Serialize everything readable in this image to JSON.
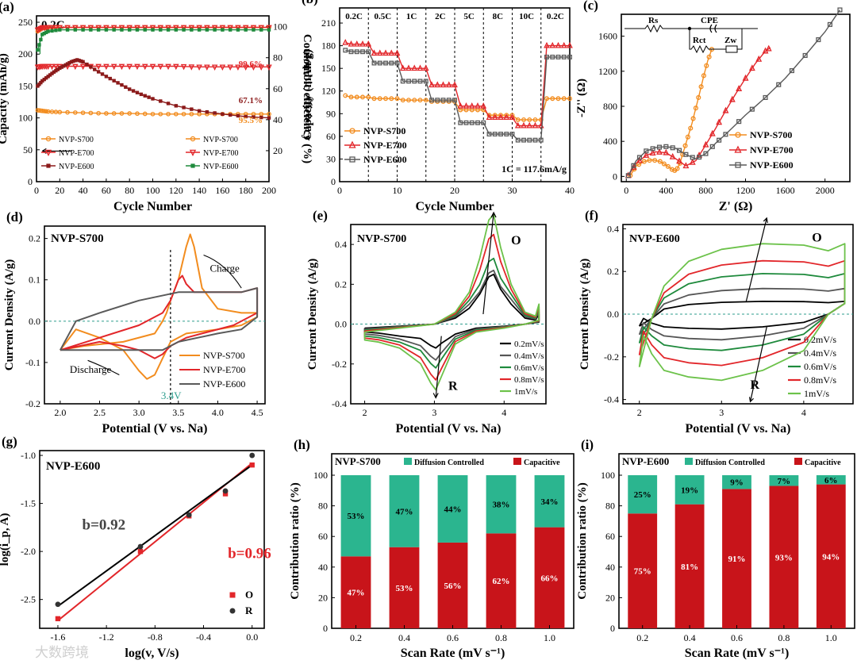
{
  "figure": {
    "watermark": "大数跨境",
    "colors": {
      "orange": "#F28C1E",
      "red": "#E2262A",
      "black": "#222222",
      "gray": "#5A5A5A",
      "green": "#1E8A3C",
      "light_green": "#6CC24A",
      "teal": "#2E9E8E",
      "maroon": "#8B1A1A",
      "diffusion": "#2BB58F",
      "capacitive": "#C8141A"
    }
  },
  "chart_data": [
    {
      "id": "a",
      "panel_label": "(a)",
      "type": "scatter",
      "note": "0.2C",
      "xlabel": "Cycle Number",
      "ylabel": "Capacity (mAh/g)",
      "y2label": "Coulombic efficiency (%)",
      "xlim": [
        0,
        200
      ],
      "ylim": [
        0,
        260
      ],
      "y2lim": [
        0,
        107
      ],
      "xticks": [
        "0",
        "20",
        "40",
        "60",
        "80",
        "100",
        "120",
        "140",
        "160",
        "180",
        "200"
      ],
      "yticks": [
        "0",
        "50",
        "100",
        "150",
        "200",
        "250"
      ],
      "y2ticks": [
        "20",
        "40",
        "60",
        "80",
        "100"
      ],
      "annotations": [
        "99.6%",
        "67.1%",
        "95.5%"
      ],
      "legend_left": [
        "NVP-S700",
        "NVP-E700",
        "NVP-E600"
      ],
      "legend_right": [
        "NVP-S700",
        "NVP-E700",
        "NVP-E600"
      ],
      "series": [
        {
          "name": "NVP-S700",
          "axis": "capacity",
          "x": [
            1,
            5,
            10,
            20,
            40,
            60,
            80,
            100,
            120,
            140,
            160,
            180,
            200
          ],
          "y": [
            112,
            111,
            110,
            109,
            108,
            107,
            107,
            106,
            106,
            106,
            106,
            106,
            106
          ]
        },
        {
          "name": "NVP-E700",
          "axis": "capacity",
          "x": [
            1,
            5,
            10,
            20,
            40,
            60,
            80,
            100,
            120,
            140,
            160,
            180,
            200
          ],
          "y": [
            180,
            181,
            181,
            181,
            181,
            181,
            181,
            181,
            181,
            180,
            180,
            180,
            180
          ]
        },
        {
          "name": "NVP-E600",
          "axis": "capacity",
          "x": [
            1,
            5,
            10,
            15,
            20,
            25,
            30,
            35,
            40,
            50,
            60,
            70,
            80,
            90,
            100,
            120,
            140,
            160,
            180,
            200
          ],
          "y": [
            150,
            158,
            165,
            172,
            178,
            183,
            188,
            191,
            188,
            176,
            165,
            155,
            145,
            137,
            130,
            119,
            111,
            106,
            102,
            100
          ]
        },
        {
          "name": "NVP-S700",
          "axis": "efficiency",
          "x": [
            1,
            5,
            10,
            20,
            40,
            60,
            80,
            100,
            120,
            140,
            160,
            180,
            200
          ],
          "y": [
            97,
            99,
            99.5,
            99.6,
            99.6,
            99.6,
            99.6,
            99.6,
            99.6,
            99.6,
            99.6,
            99.6,
            99.6
          ]
        },
        {
          "name": "NVP-E700",
          "axis": "efficiency",
          "x": [
            1,
            5,
            10,
            20,
            40,
            60,
            80,
            100,
            120,
            140,
            160,
            180,
            200
          ],
          "y": [
            98,
            99.5,
            99.6,
            99.6,
            99.6,
            99.6,
            99.6,
            99.6,
            99.6,
            99.6,
            99.6,
            99.6,
            99.6
          ]
        },
        {
          "name": "NVP-E600",
          "axis": "efficiency",
          "x": [
            1,
            5,
            10,
            20,
            40,
            60,
            80,
            100,
            120,
            140,
            160,
            180,
            200
          ],
          "y": [
            85,
            95,
            97,
            98,
            98,
            98,
            98,
            98,
            98,
            98,
            98,
            98,
            98
          ]
        }
      ]
    },
    {
      "id": "b",
      "panel_label": "(b)",
      "type": "line",
      "xlabel": "Cycle Number",
      "ylabel": "Capacity (mAh/g)",
      "xlim": [
        0,
        40
      ],
      "ylim": [
        0,
        230
      ],
      "xticks": [
        "0",
        "10",
        "20",
        "30",
        "40"
      ],
      "yticks": [
        "0",
        "30",
        "60",
        "90",
        "120",
        "150",
        "180",
        "210"
      ],
      "rate_labels": [
        "0.2C",
        "0.5C",
        "1C",
        "2C",
        "5C",
        "8C",
        "10C",
        "0.2C"
      ],
      "rate_boundaries": [
        5,
        10,
        15,
        20,
        25,
        30,
        35
      ],
      "note": "1C = 117.6mA/g",
      "series": [
        {
          "name": "NVP-S700",
          "levels": [
            112,
            110,
            108,
            106,
            95,
            88,
            82,
            110
          ]
        },
        {
          "name": "NVP-E700",
          "levels": [
            182,
            170,
            150,
            128,
            100,
            85,
            74,
            180
          ]
        },
        {
          "name": "NVP-E600",
          "levels": [
            172,
            157,
            133,
            108,
            78,
            63,
            55,
            165
          ]
        }
      ]
    },
    {
      "id": "c",
      "panel_label": "(c)",
      "type": "line",
      "xlabel": "Z' (Ω)",
      "ylabel": "-Z'' (Ω)",
      "xlim": [
        -50,
        2250
      ],
      "ylim": [
        -60,
        1850
      ],
      "xticks": [
        "0",
        "400",
        "800",
        "1200",
        "1600",
        "2000"
      ],
      "yticks": [
        "0",
        "400",
        "800",
        "1200",
        "1600"
      ],
      "circuit_labels": [
        "Rs",
        "CPE",
        "Rct",
        "Zw"
      ],
      "series": [
        {
          "name": "NVP-S700",
          "x": [
            40,
            100,
            180,
            260,
            340,
            400,
            460,
            500,
            540,
            580,
            620,
            660,
            700,
            740,
            780,
            820,
            860
          ],
          "y": [
            10,
            120,
            170,
            190,
            170,
            130,
            80,
            60,
            150,
            300,
            450,
            600,
            780,
            960,
            1150,
            1320,
            1450
          ]
        },
        {
          "name": "NVP-E700",
          "x": [
            20,
            100,
            200,
            300,
            400,
            500,
            600,
            700,
            800,
            900,
            1000,
            1100,
            1200,
            1300,
            1400,
            1450
          ],
          "y": [
            10,
            150,
            240,
            280,
            270,
            200,
            120,
            180,
            360,
            550,
            750,
            940,
            1120,
            1290,
            1430,
            1470
          ]
        },
        {
          "name": "NVP-E600",
          "x": [
            20,
            100,
            200,
            300,
            400,
            500,
            600,
            700,
            800,
            900,
            1000,
            1200,
            1400,
            1600,
            1800,
            2000,
            2150
          ],
          "y": [
            10,
            180,
            290,
            330,
            340,
            320,
            250,
            200,
            260,
            380,
            480,
            700,
            900,
            1120,
            1380,
            1650,
            1900
          ]
        }
      ]
    },
    {
      "id": "d",
      "panel_label": "(d)",
      "type": "line",
      "note": "NVP-S700",
      "xlabel": "Potential (V vs. Na)",
      "ylabel": "Current Density (A/g)",
      "xlim": [
        1.8,
        4.6
      ],
      "ylim": [
        -0.2,
        0.23
      ],
      "xticks": [
        "2.0",
        "2.5",
        "3.0",
        "3.5",
        "4.0",
        "4.5"
      ],
      "yticks": [
        "-0.2",
        "-0.1",
        "0.0",
        "0.1",
        "0.2"
      ],
      "annotations": [
        "Charge",
        "Discharge",
        "3.4V"
      ],
      "series": [
        {
          "name": "NVP-S700",
          "x": [
            2.0,
            2.3,
            2.8,
            3.2,
            3.3,
            3.35,
            3.4,
            3.5,
            3.6,
            3.65,
            3.7,
            3.8,
            4.0,
            4.3,
            4.5,
            4.5,
            4.3,
            4.0,
            3.6,
            3.4,
            3.3,
            3.2,
            3.1,
            3.0,
            2.8,
            2.5,
            2.2,
            2.0
          ],
          "y": [
            -0.07,
            -0.06,
            -0.05,
            -0.03,
            0.0,
            0.02,
            0.05,
            0.1,
            0.18,
            0.21,
            0.18,
            0.08,
            0.03,
            0.02,
            0.02,
            0.01,
            -0.01,
            -0.02,
            -0.03,
            -0.05,
            -0.09,
            -0.13,
            -0.14,
            -0.12,
            -0.07,
            -0.04,
            -0.02,
            -0.07
          ]
        },
        {
          "name": "NVP-E700",
          "x": [
            2.0,
            2.5,
            3.0,
            3.3,
            3.4,
            3.5,
            3.55,
            3.6,
            3.7,
            3.8,
            4.0,
            4.3,
            4.5,
            4.5,
            4.2,
            3.8,
            3.6,
            3.4,
            3.3,
            3.2,
            3.1,
            3.0,
            2.8,
            2.5,
            2.0
          ],
          "y": [
            -0.07,
            -0.04,
            -0.01,
            0.02,
            0.05,
            0.1,
            0.11,
            0.09,
            0.07,
            0.07,
            0.07,
            0.07,
            0.08,
            0.02,
            -0.01,
            -0.03,
            -0.04,
            -0.06,
            -0.08,
            -0.09,
            -0.08,
            -0.07,
            -0.06,
            -0.05,
            -0.07
          ]
        },
        {
          "name": "NVP-E600",
          "x": [
            2.0,
            2.2,
            2.5,
            3.0,
            3.5,
            4.0,
            4.3,
            4.5,
            4.5,
            4.3,
            4.0,
            3.5,
            3.3,
            3.0,
            2.5,
            2.2,
            2.0
          ],
          "y": [
            -0.07,
            0.0,
            0.02,
            0.05,
            0.07,
            0.07,
            0.07,
            0.08,
            0.01,
            -0.02,
            -0.03,
            -0.05,
            -0.07,
            -0.07,
            -0.07,
            -0.07,
            -0.07
          ]
        }
      ]
    },
    {
      "id": "e",
      "panel_label": "(e)",
      "type": "line",
      "note": "NVP-S700",
      "xlabel": "Potential (V vs. Na)",
      "ylabel": "Current Density (A/g)",
      "xlim": [
        1.8,
        4.6
      ],
      "ylim": [
        -0.4,
        0.5
      ],
      "xticks": [
        "2",
        "3",
        "4"
      ],
      "yticks": [
        "-0.4",
        "-0.2",
        "0.0",
        "0.2",
        "0.4"
      ],
      "annotations": [
        "O",
        "R"
      ],
      "series": [
        {
          "name": "0.2mV/s",
          "peak_ox": 0.25,
          "peak_red": -0.12
        },
        {
          "name": "0.4mV/s",
          "peak_ox": 0.27,
          "peak_red": -0.18
        },
        {
          "name": "0.6mV/s",
          "peak_ox": 0.33,
          "peak_red": -0.22
        },
        {
          "name": "0.8mV/s",
          "peak_ox": 0.45,
          "peak_red": -0.28
        },
        {
          "name": "1mV/s",
          "peak_ox": 0.55,
          "peak_red": -0.33
        }
      ]
    },
    {
      "id": "f",
      "panel_label": "(f)",
      "type": "line",
      "note": "NVP-E600",
      "xlabel": "Potential (V vs. Na)",
      "ylabel": "Current Density (A/g)",
      "xlim": [
        1.8,
        4.6
      ],
      "ylim": [
        -0.42,
        0.42
      ],
      "xticks": [
        "2",
        "3",
        "4"
      ],
      "yticks": [
        "-0.4",
        "-0.2",
        "0.0",
        "0.2",
        "0.4"
      ],
      "annotations": [
        "O",
        "R"
      ],
      "series": [
        {
          "name": "0.2mV/s",
          "top": 0.06,
          "bottom": -0.07
        },
        {
          "name": "0.4mV/s",
          "top": 0.12,
          "bottom": -0.12
        },
        {
          "name": "0.6mV/s",
          "top": 0.19,
          "bottom": -0.17
        },
        {
          "name": "0.8mV/s",
          "top": 0.25,
          "bottom": -0.24
        },
        {
          "name": "1mV/s",
          "top": 0.33,
          "bottom": -0.31
        }
      ]
    },
    {
      "id": "g",
      "panel_label": "(g)",
      "type": "scatter",
      "note": "NVP-E600",
      "xlabel": "log(v, V/s)",
      "ylabel": "log(i_p, A)",
      "xlim": [
        -1.75,
        0.1
      ],
      "ylim": [
        -2.8,
        -0.95
      ],
      "xticks": [
        "-1.6",
        "-1.2",
        "-0.8",
        "-0.4",
        "0.0"
      ],
      "yticks": [
        "-2.5",
        "-2.0",
        "-1.5",
        "-1.0"
      ],
      "annotations": [
        "b=0.92",
        "b=0.96"
      ],
      "series": [
        {
          "name": "O",
          "x": [
            -1.6,
            -0.92,
            -0.52,
            -0.22,
            0.0
          ],
          "y": [
            -2.7,
            -2.0,
            -1.63,
            -1.4,
            -1.1
          ]
        },
        {
          "name": "R",
          "x": [
            -1.6,
            -0.92,
            -0.52,
            -0.22,
            0.0
          ],
          "y": [
            -2.55,
            -1.95,
            -1.62,
            -1.37,
            -1.0
          ]
        }
      ]
    },
    {
      "id": "h",
      "panel_label": "(h)",
      "type": "bar",
      "note": "NVP-S700",
      "xlabel": "Scan Rate (mV s⁻¹)",
      "ylabel": "Contribution ratio (%)",
      "categories": [
        "0.2",
        "0.4",
        "0.6",
        "0.8",
        "1.0"
      ],
      "ylim": [
        0,
        100
      ],
      "yticks": [
        "0",
        "20",
        "40",
        "60",
        "80",
        "100"
      ],
      "series": [
        {
          "name": "Capacitive",
          "values": [
            47,
            53,
            56,
            62,
            66
          ],
          "labels": [
            "47%",
            "53%",
            "56%",
            "62%",
            "66%"
          ]
        },
        {
          "name": "Diffusion Controlled",
          "values": [
            53,
            47,
            44,
            38,
            34
          ],
          "labels": [
            "53%",
            "47%",
            "44%",
            "38%",
            "34%"
          ]
        }
      ]
    },
    {
      "id": "i",
      "panel_label": "(i)",
      "type": "bar",
      "note": "NVP-E600",
      "xlabel": "Scan Rate (mV s⁻¹)",
      "ylabel": "Contribution ratio (%)",
      "categories": [
        "0.2",
        "0.4",
        "0.6",
        "0.8",
        "1.0"
      ],
      "ylim": [
        0,
        100
      ],
      "yticks": [
        "0",
        "20",
        "40",
        "60",
        "80",
        "100"
      ],
      "series": [
        {
          "name": "Capacitive",
          "values": [
            75,
            81,
            91,
            93,
            94
          ],
          "labels": [
            "75%",
            "81%",
            "91%",
            "93%",
            "94%"
          ]
        },
        {
          "name": "Diffusion Controlled",
          "values": [
            25,
            19,
            9,
            7,
            6
          ],
          "labels": [
            "25%",
            "19%",
            "9%",
            "7%",
            "6%"
          ]
        }
      ]
    }
  ]
}
